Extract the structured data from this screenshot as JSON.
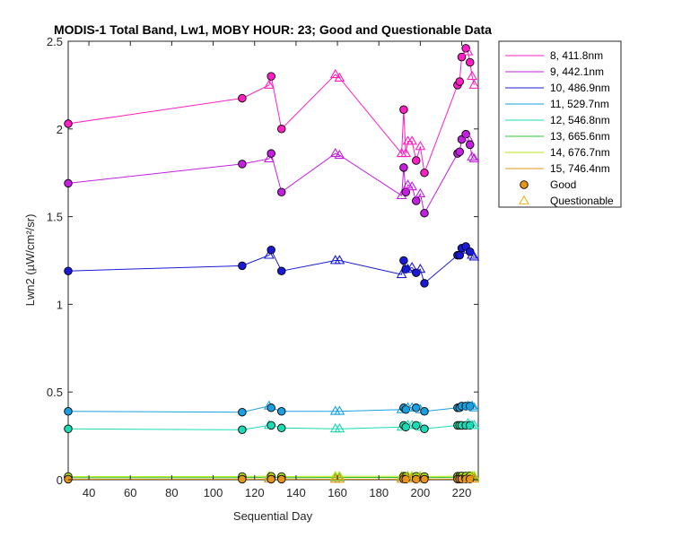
{
  "chart_data": {
    "type": "line",
    "title": "MODIS-1 Total Band, Lw1, MOBY HOUR: 23;  Good and Questionable Data",
    "xlabel": "Sequential Day",
    "ylabel": "Lwn2 (µW/cm²/sr)",
    "xlim": [
      30,
      228
    ],
    "ylim": [
      0,
      2.5
    ],
    "xticks": [
      "40",
      "60",
      "80",
      "100",
      "120",
      "140",
      "160",
      "180",
      "200",
      "220"
    ],
    "yticks": [
      "0",
      "0.5",
      "1",
      "1.5",
      "2",
      "2.5"
    ],
    "grid": false,
    "legend_position": "outside-right",
    "series": [
      {
        "name": "8, 411.8nm",
        "color": "#ff1fc4",
        "points": [
          [
            30,
            2.03,
            "g"
          ],
          [
            114,
            2.175,
            "g"
          ],
          [
            127,
            2.25,
            "q"
          ],
          [
            128,
            2.3,
            "g"
          ],
          [
            133,
            2.0,
            "g"
          ],
          [
            159,
            2.31,
            "q"
          ],
          [
            161,
            2.29,
            "q"
          ],
          [
            191,
            1.86,
            "q"
          ],
          [
            192,
            2.11,
            "g"
          ],
          [
            193,
            1.86,
            "q"
          ],
          [
            194,
            1.93,
            "q"
          ],
          [
            196,
            1.93,
            "q"
          ],
          [
            198,
            1.82,
            "g"
          ],
          [
            200,
            1.9,
            "q"
          ],
          [
            202,
            1.75,
            "g"
          ],
          [
            218,
            2.25,
            "g"
          ],
          [
            219,
            2.27,
            "g"
          ],
          [
            220,
            2.41,
            "g"
          ],
          [
            222,
            2.46,
            "g"
          ],
          [
            223,
            2.44,
            "q"
          ],
          [
            224,
            2.38,
            "g"
          ],
          [
            225,
            2.3,
            "q"
          ],
          [
            226,
            2.25,
            "q"
          ]
        ]
      },
      {
        "name": "9, 442.1nm",
        "color": "#c41fe0",
        "points": [
          [
            30,
            1.69,
            "g"
          ],
          [
            114,
            1.8,
            "g"
          ],
          [
            127,
            1.83,
            "q"
          ],
          [
            128,
            1.86,
            "g"
          ],
          [
            133,
            1.64,
            "g"
          ],
          [
            159,
            1.86,
            "q"
          ],
          [
            161,
            1.85,
            "q"
          ],
          [
            191,
            1.62,
            "q"
          ],
          [
            192,
            1.78,
            "g"
          ],
          [
            193,
            1.64,
            "g"
          ],
          [
            194,
            1.68,
            "q"
          ],
          [
            196,
            1.67,
            "q"
          ],
          [
            198,
            1.59,
            "g"
          ],
          [
            200,
            1.63,
            "q"
          ],
          [
            202,
            1.52,
            "g"
          ],
          [
            218,
            1.86,
            "g"
          ],
          [
            219,
            1.87,
            "g"
          ],
          [
            220,
            1.94,
            "g"
          ],
          [
            222,
            1.97,
            "g"
          ],
          [
            223,
            1.95,
            "q"
          ],
          [
            224,
            1.91,
            "g"
          ],
          [
            225,
            1.84,
            "q"
          ],
          [
            226,
            1.83,
            "q"
          ]
        ]
      },
      {
        "name": "10, 486.9nm",
        "color": "#1a1ad6",
        "points": [
          [
            30,
            1.19,
            "g"
          ],
          [
            114,
            1.22,
            "g"
          ],
          [
            127,
            1.28,
            "q"
          ],
          [
            128,
            1.31,
            "g"
          ],
          [
            133,
            1.19,
            "g"
          ],
          [
            159,
            1.25,
            "q"
          ],
          [
            161,
            1.25,
            "q"
          ],
          [
            191,
            1.17,
            "q"
          ],
          [
            192,
            1.25,
            "g"
          ],
          [
            193,
            1.2,
            "g"
          ],
          [
            194,
            1.2,
            "q"
          ],
          [
            196,
            1.21,
            "q"
          ],
          [
            198,
            1.18,
            "g"
          ],
          [
            200,
            1.2,
            "q"
          ],
          [
            202,
            1.12,
            "g"
          ],
          [
            218,
            1.28,
            "g"
          ],
          [
            219,
            1.28,
            "g"
          ],
          [
            220,
            1.32,
            "g"
          ],
          [
            222,
            1.33,
            "g"
          ],
          [
            223,
            1.31,
            "q"
          ],
          [
            224,
            1.3,
            "g"
          ],
          [
            225,
            1.28,
            "q"
          ],
          [
            226,
            1.27,
            "q"
          ]
        ]
      },
      {
        "name": "11, 529.7nm",
        "color": "#1aa0e0",
        "points": [
          [
            30,
            0.39,
            "g"
          ],
          [
            114,
            0.385,
            "g"
          ],
          [
            127,
            0.42,
            "q"
          ],
          [
            128,
            0.41,
            "g"
          ],
          [
            133,
            0.39,
            "g"
          ],
          [
            159,
            0.39,
            "q"
          ],
          [
            161,
            0.39,
            "q"
          ],
          [
            191,
            0.4,
            "q"
          ],
          [
            192,
            0.41,
            "g"
          ],
          [
            193,
            0.4,
            "g"
          ],
          [
            194,
            0.41,
            "q"
          ],
          [
            196,
            0.41,
            "q"
          ],
          [
            198,
            0.41,
            "g"
          ],
          [
            200,
            0.4,
            "q"
          ],
          [
            202,
            0.39,
            "g"
          ],
          [
            218,
            0.41,
            "g"
          ],
          [
            219,
            0.41,
            "g"
          ],
          [
            220,
            0.42,
            "g"
          ],
          [
            222,
            0.42,
            "g"
          ],
          [
            223,
            0.42,
            "q"
          ],
          [
            224,
            0.42,
            "g"
          ],
          [
            225,
            0.42,
            "q"
          ],
          [
            226,
            0.41,
            "q"
          ]
        ]
      },
      {
        "name": "12, 546.8nm",
        "color": "#1adcb4",
        "points": [
          [
            30,
            0.29,
            "g"
          ],
          [
            114,
            0.285,
            "g"
          ],
          [
            127,
            0.31,
            "q"
          ],
          [
            128,
            0.31,
            "g"
          ],
          [
            133,
            0.295,
            "g"
          ],
          [
            159,
            0.29,
            "q"
          ],
          [
            161,
            0.29,
            "q"
          ],
          [
            191,
            0.3,
            "q"
          ],
          [
            192,
            0.31,
            "g"
          ],
          [
            193,
            0.3,
            "g"
          ],
          [
            194,
            0.31,
            "q"
          ],
          [
            196,
            0.31,
            "q"
          ],
          [
            198,
            0.31,
            "g"
          ],
          [
            200,
            0.3,
            "q"
          ],
          [
            202,
            0.29,
            "g"
          ],
          [
            218,
            0.31,
            "g"
          ],
          [
            219,
            0.31,
            "g"
          ],
          [
            220,
            0.31,
            "g"
          ],
          [
            222,
            0.31,
            "g"
          ],
          [
            223,
            0.32,
            "q"
          ],
          [
            224,
            0.31,
            "g"
          ],
          [
            225,
            0.31,
            "q"
          ],
          [
            226,
            0.31,
            "q"
          ]
        ]
      },
      {
        "name": "13, 665.6nm",
        "color": "#2ec42e",
        "points": [
          [
            30,
            0.012,
            "g"
          ],
          [
            114,
            0.012,
            "g"
          ],
          [
            127,
            0.014,
            "q"
          ],
          [
            128,
            0.013,
            "g"
          ],
          [
            133,
            0.012,
            "g"
          ],
          [
            159,
            0.013,
            "q"
          ],
          [
            161,
            0.013,
            "q"
          ],
          [
            191,
            0.013,
            "q"
          ],
          [
            192,
            0.014,
            "g"
          ],
          [
            193,
            0.013,
            "g"
          ],
          [
            194,
            0.014,
            "q"
          ],
          [
            196,
            0.014,
            "q"
          ],
          [
            198,
            0.013,
            "g"
          ],
          [
            200,
            0.013,
            "q"
          ],
          [
            202,
            0.012,
            "g"
          ],
          [
            218,
            0.014,
            "g"
          ],
          [
            219,
            0.014,
            "g"
          ],
          [
            220,
            0.015,
            "g"
          ],
          [
            222,
            0.015,
            "g"
          ],
          [
            223,
            0.015,
            "q"
          ],
          [
            224,
            0.015,
            "g"
          ],
          [
            225,
            0.015,
            "q"
          ],
          [
            226,
            0.014,
            "q"
          ]
        ]
      },
      {
        "name": "14, 676.7nm",
        "color": "#b4e61a",
        "points": [
          [
            30,
            0.018,
            "g"
          ],
          [
            114,
            0.018,
            "g"
          ],
          [
            127,
            0.02,
            "q"
          ],
          [
            128,
            0.019,
            "g"
          ],
          [
            133,
            0.018,
            "g"
          ],
          [
            159,
            0.019,
            "q"
          ],
          [
            161,
            0.019,
            "q"
          ],
          [
            191,
            0.019,
            "q"
          ],
          [
            192,
            0.02,
            "g"
          ],
          [
            193,
            0.019,
            "g"
          ],
          [
            194,
            0.02,
            "q"
          ],
          [
            196,
            0.02,
            "q"
          ],
          [
            198,
            0.019,
            "g"
          ],
          [
            200,
            0.019,
            "q"
          ],
          [
            202,
            0.018,
            "g"
          ],
          [
            218,
            0.02,
            "g"
          ],
          [
            219,
            0.02,
            "g"
          ],
          [
            220,
            0.021,
            "g"
          ],
          [
            222,
            0.021,
            "g"
          ],
          [
            223,
            0.021,
            "q"
          ],
          [
            224,
            0.021,
            "g"
          ],
          [
            225,
            0.021,
            "q"
          ],
          [
            226,
            0.02,
            "q"
          ]
        ]
      },
      {
        "name": "15, 746.4nm",
        "color": "#e6961a",
        "points": [
          [
            30,
            0.003,
            "g"
          ],
          [
            114,
            0.003,
            "g"
          ],
          [
            127,
            0.004,
            "q"
          ],
          [
            128,
            0.003,
            "g"
          ],
          [
            133,
            0.003,
            "g"
          ],
          [
            159,
            0.003,
            "q"
          ],
          [
            161,
            0.003,
            "q"
          ],
          [
            191,
            0.003,
            "q"
          ],
          [
            192,
            0.004,
            "g"
          ],
          [
            193,
            0.003,
            "g"
          ],
          [
            194,
            0.004,
            "q"
          ],
          [
            196,
            0.004,
            "q"
          ],
          [
            198,
            0.003,
            "g"
          ],
          [
            200,
            0.003,
            "q"
          ],
          [
            202,
            0.003,
            "g"
          ],
          [
            218,
            0.004,
            "g"
          ],
          [
            219,
            0.004,
            "g"
          ],
          [
            220,
            0.004,
            "g"
          ],
          [
            222,
            0.004,
            "g"
          ],
          [
            223,
            0.004,
            "q"
          ],
          [
            224,
            0.004,
            "g"
          ],
          [
            225,
            0.004,
            "q"
          ],
          [
            226,
            0.004,
            "q"
          ]
        ]
      }
    ],
    "marker_legend": [
      {
        "name": "Good",
        "marker": "circle",
        "color": "#e6961a"
      },
      {
        "name": "Questionable",
        "marker": "triangle",
        "color": "#e6b41a"
      }
    ]
  }
}
